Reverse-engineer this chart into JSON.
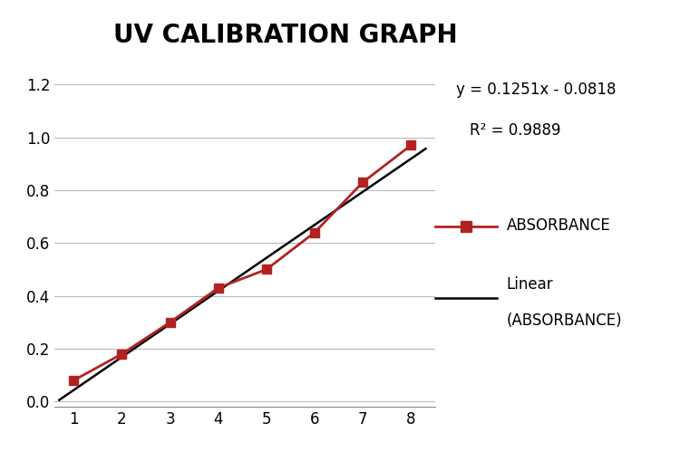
{
  "title": "UV CALIBRATION GRAPH",
  "x": [
    1,
    2,
    3,
    4,
    5,
    6,
    7,
    8
  ],
  "y": [
    0.08,
    0.18,
    0.3,
    0.43,
    0.5,
    0.64,
    0.83,
    0.97
  ],
  "line_color": "#B22222",
  "marker_color": "#B22222",
  "linear_color": "#000000",
  "linear_slope": 0.1251,
  "linear_intercept": -0.0818,
  "equation_text": "y = 0.1251x - 0.0818",
  "r2_text": "R² = 0.9889",
  "ylabel_ticks": [
    0,
    0.2,
    0.4,
    0.6,
    0.8,
    1.0,
    1.2
  ],
  "xlim": [
    0.6,
    8.5
  ],
  "ylim": [
    -0.02,
    1.28
  ],
  "legend_absorbance": "ABSORBANCE",
  "legend_linear": "Linear\n(ABSORBANCE)",
  "background_color": "#ffffff",
  "grid_color": "#bbbbbb",
  "title_fontsize": 20,
  "annotation_fontsize": 12,
  "tick_fontsize": 12,
  "legend_fontsize": 12
}
